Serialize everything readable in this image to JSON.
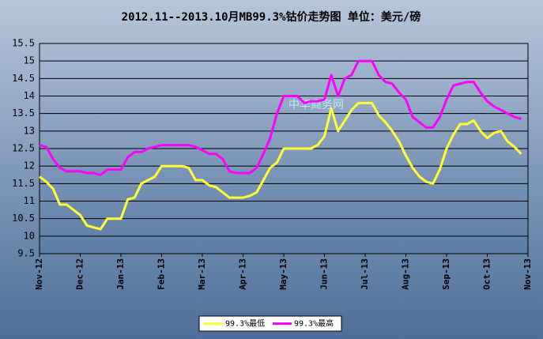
{
  "chart_data": {
    "type": "line",
    "title": "2012.11--2013.10月MB99.3%钴价走势图   单位：美元/磅",
    "watermark": "中华商务网",
    "categories": [
      "Nov-12",
      null,
      null,
      null,
      null,
      null,
      "Dec-12",
      null,
      null,
      null,
      null,
      null,
      "Jan-13",
      null,
      null,
      null,
      null,
      null,
      "Feb-13",
      null,
      null,
      null,
      null,
      null,
      "Mar-13",
      null,
      null,
      null,
      null,
      null,
      "Apr-13",
      null,
      null,
      null,
      null,
      null,
      "May-13",
      null,
      null,
      null,
      null,
      null,
      "Jun-13",
      null,
      null,
      null,
      null,
      null,
      "Jul-13",
      null,
      null,
      null,
      null,
      null,
      "Aug-13",
      null,
      null,
      null,
      null,
      null,
      "Sep-13",
      null,
      null,
      null,
      null,
      null,
      "Oct-13",
      null,
      null,
      null,
      null,
      null,
      "Nov-13"
    ],
    "series": [
      {
        "name": "99.3%最低",
        "color": "#ffff33",
        "values": [
          11.7,
          11.55,
          11.35,
          10.9,
          10.9,
          10.75,
          10.6,
          10.3,
          10.25,
          10.2,
          10.5,
          10.5,
          10.5,
          11.05,
          11.1,
          11.5,
          11.6,
          11.7,
          12.0,
          12.0,
          12.0,
          12.0,
          11.95,
          11.6,
          11.6,
          11.45,
          11.4,
          11.25,
          11.1,
          11.1,
          11.1,
          11.15,
          11.25,
          11.6,
          11.95,
          12.1,
          12.5,
          12.5,
          12.5,
          12.5,
          12.5,
          12.6,
          12.85,
          13.65,
          13.0,
          13.3,
          13.6,
          13.8,
          13.8,
          13.8,
          13.45,
          13.25,
          13.0,
          12.7,
          12.3,
          11.95,
          11.7,
          11.55,
          11.5,
          11.9,
          12.5,
          12.9,
          13.2,
          13.2,
          13.3,
          13.0,
          12.8,
          12.95,
          13.0,
          12.7,
          12.55,
          12.35,
          null
        ]
      },
      {
        "name": "99.3%最高",
        "color": "#ff00ff",
        "values": [
          12.6,
          12.55,
          12.2,
          11.95,
          11.85,
          11.85,
          11.85,
          11.8,
          11.8,
          11.75,
          11.9,
          11.9,
          11.9,
          12.25,
          12.4,
          12.4,
          12.5,
          12.55,
          12.6,
          12.6,
          12.6,
          12.6,
          12.6,
          12.55,
          12.45,
          12.35,
          12.35,
          12.2,
          11.85,
          11.8,
          11.8,
          11.8,
          11.95,
          12.35,
          12.8,
          13.5,
          14.0,
          14.0,
          14.0,
          13.8,
          13.85,
          13.85,
          13.9,
          14.6,
          14.0,
          14.5,
          14.6,
          15.0,
          15.0,
          15.0,
          14.6,
          14.4,
          14.35,
          14.1,
          13.9,
          13.4,
          13.25,
          13.1,
          13.1,
          13.4,
          13.9,
          14.3,
          14.35,
          14.4,
          14.4,
          14.1,
          13.85,
          13.7,
          13.6,
          13.5,
          13.4,
          13.35,
          null
        ]
      }
    ],
    "ylim": [
      9.5,
      15.5
    ],
    "yticks": [
      9.5,
      10,
      10.5,
      11,
      11.5,
      12,
      12.5,
      13,
      13.5,
      14,
      14.5,
      15,
      15.5
    ],
    "grid": true,
    "legend": "bottom"
  }
}
